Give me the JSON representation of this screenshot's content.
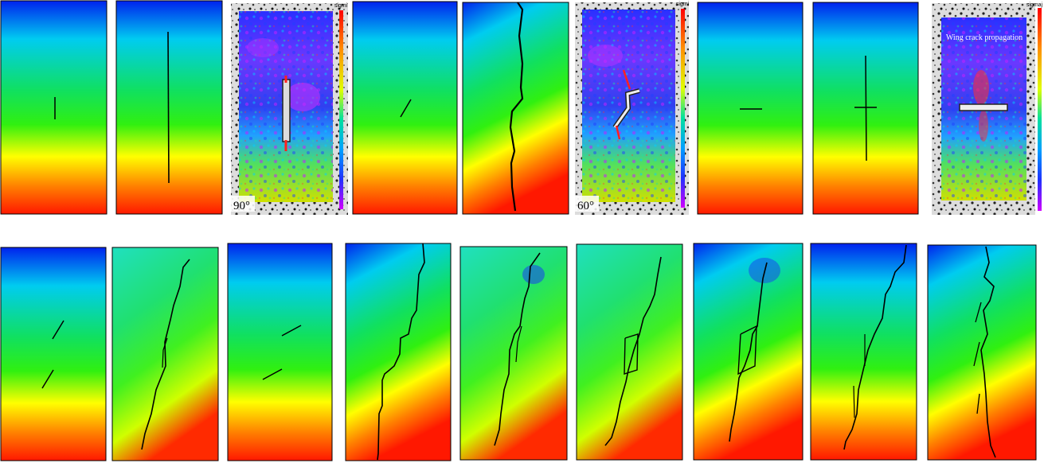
{
  "labels": {
    "angle_90": "90°",
    "angle_60": "60°",
    "wing_crack": "Wing crack propagation",
    "colorbar_1": "sigmi",
    "colorbar_2": "sigmi",
    "colorbar_3": "sigmaj"
  },
  "colors": {
    "gradient": [
      "#0022ee",
      "#00ccf0",
      "#10e060",
      "#30f010",
      "#ffff00",
      "#ff8000",
      "#ff1800"
    ],
    "panel_border": "#000000",
    "crack": "#000000"
  },
  "panel_kinds": {
    "top_row": [
      "simulation",
      "simulation",
      "dic-photo",
      "simulation",
      "simulation",
      "dic-photo",
      "simulation",
      "simulation",
      "dic-photo"
    ],
    "bottom_row": [
      "simulation",
      "simulation",
      "simulation",
      "simulation",
      "simulation",
      "simulation",
      "simulation",
      "simulation",
      "simulation"
    ]
  }
}
